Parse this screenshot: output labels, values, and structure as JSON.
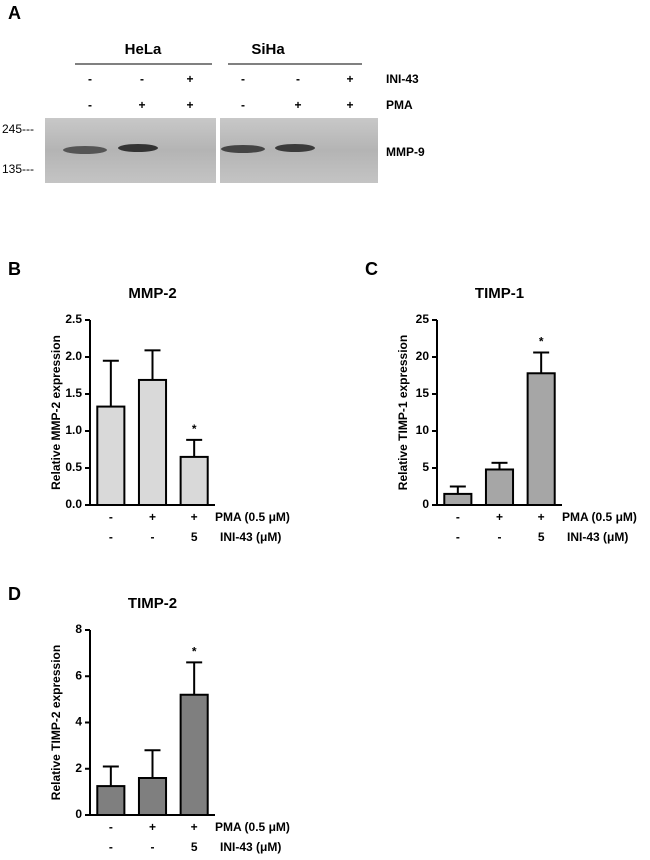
{
  "blot": {
    "panel": "A",
    "groups": [
      "HeLa",
      "SiHa"
    ],
    "rows": [
      {
        "name": "INI-43",
        "labels": [
          "-",
          "-",
          "+",
          "-",
          "-",
          "+"
        ]
      },
      {
        "name": "PMA",
        "labels": [
          "-",
          "+",
          "+",
          "-",
          "+",
          "+"
        ]
      }
    ],
    "markers": [
      "245---",
      "135---"
    ],
    "band_label": "MMP-9"
  },
  "chart_data": [
    {
      "type": "bar",
      "panel": "B",
      "title": "MMP-2",
      "ylabel": "Relative MMP-2 expression",
      "values": [
        1.33,
        1.69,
        0.65
      ],
      "errors": [
        0.62,
        0.4,
        0.23
      ],
      "annotations": [
        null,
        null,
        "*"
      ],
      "color": "#d9d9d9",
      "ylim": [
        0,
        2.5
      ],
      "yticks": [
        {
          "value": 0,
          "label": "0.0"
        },
        {
          "value": 0.5,
          "label": "0.5"
        },
        {
          "value": 1,
          "label": "1.0"
        },
        {
          "value": 1.5,
          "label": "1.5"
        },
        {
          "value": 2,
          "label": "2.0"
        },
        {
          "value": 2.5,
          "label": "2.5"
        }
      ],
      "conditions": [
        {
          "name": "PMA (0.5 μM)",
          "labels": [
            "-",
            "+",
            "+"
          ]
        },
        {
          "name": "INI-43 (μM)",
          "labels": [
            "-",
            "-",
            "5"
          ]
        }
      ]
    },
    {
      "type": "bar",
      "panel": "C",
      "title": "TIMP-1",
      "ylabel": "Relative TIMP-1 expression",
      "values": [
        1.5,
        4.8,
        17.8
      ],
      "errors": [
        1.0,
        0.9,
        2.8
      ],
      "annotations": [
        null,
        null,
        "*"
      ],
      "color": "#a6a6a6",
      "ylim": [
        0,
        25
      ],
      "yticks": [
        0,
        5,
        10,
        15,
        20,
        25
      ],
      "conditions": [
        {
          "name": "PMA (0.5 μM)",
          "labels": [
            "-",
            "+",
            "+"
          ]
        },
        {
          "name": "INI-43 (μM)",
          "labels": [
            "-",
            "-",
            "5"
          ]
        }
      ]
    },
    {
      "type": "bar",
      "panel": "D",
      "title": "TIMP-2",
      "ylabel": "Relative TIMP-2 expression",
      "values": [
        1.25,
        1.6,
        5.2
      ],
      "errors": [
        0.85,
        1.2,
        1.4
      ],
      "annotations": [
        null,
        null,
        "*"
      ],
      "color": "#7f7f7f",
      "ylim": [
        0,
        8
      ],
      "yticks": [
        0,
        2,
        4,
        6,
        8
      ],
      "conditions": [
        {
          "name": "PMA (0.5 μM)",
          "labels": [
            "-",
            "+",
            "+"
          ]
        },
        {
          "name": "INI-43 (μM)",
          "labels": [
            "-",
            "-",
            "5"
          ]
        }
      ]
    }
  ]
}
